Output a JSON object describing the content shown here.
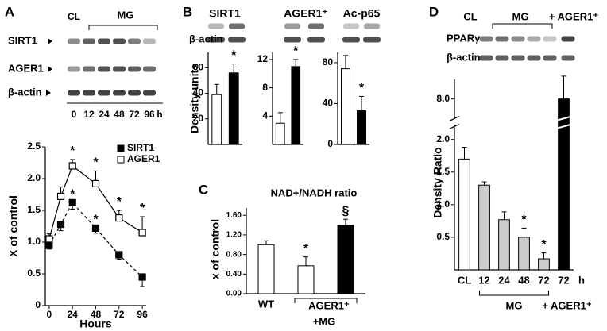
{
  "figure": {
    "panel_labels": [
      "A",
      "B",
      "C",
      "D"
    ]
  },
  "blot_a": {
    "groups": [
      "CL",
      "MG"
    ],
    "rows": [
      "SIRT1",
      "AGER1",
      "β-actin"
    ],
    "times": [
      "0",
      "12",
      "24",
      "48",
      "72",
      "96"
    ],
    "unit": "h"
  },
  "blot_b": {
    "columns": [
      "SIRT1",
      "AGER1⁺",
      "Ac-p65"
    ],
    "rows": [
      "β-actin"
    ]
  },
  "blot_d": {
    "groups": [
      "CL",
      "MG",
      "+ AGER1⁺"
    ],
    "rows": [
      "PPARγ",
      "β-actin"
    ]
  },
  "chart_data": [
    {
      "type": "line",
      "x_label": "Hours",
      "y_label": "X of control",
      "x": [
        0,
        12,
        24,
        48,
        72,
        96
      ],
      "xlim": [
        -4,
        100
      ],
      "xticks": [
        0,
        24,
        48,
        72,
        96
      ],
      "ylim": [
        0,
        2.5
      ],
      "yticks": [
        0,
        0.5,
        {
          "value": 1,
          "label": "1.0"
        },
        1.5,
        {
          "value": 2,
          "label": "2.0"
        },
        2.5
      ],
      "legend": "upper right",
      "series": [
        {
          "name": "SIRT1",
          "color": "#000000",
          "dash": true,
          "values": [
            0.95,
            1.28,
            1.62,
            1.22,
            0.8,
            0.45
          ],
          "errors": [
            0.06,
            0.1,
            0.1,
            0.08,
            0.07,
            0.15
          ],
          "markers": [
            null,
            null,
            "*",
            "*",
            null,
            null
          ]
        },
        {
          "name": "AGER1",
          "color": "#ffffff",
          "dash": false,
          "values": [
            1.05,
            1.72,
            2.2,
            1.92,
            1.38,
            1.15
          ],
          "errors": [
            0.08,
            0.15,
            0.1,
            0.2,
            0.12,
            0.25
          ],
          "markers": [
            null,
            null,
            "*",
            "*",
            "*",
            "*"
          ]
        }
      ]
    },
    {
      "type": "bar",
      "y_label": "Density units",
      "values": [
        39,
        56
      ],
      "errors": [
        8,
        7
      ],
      "colors": [
        "#ffffff",
        "#000000"
      ],
      "markers": [
        null,
        "*"
      ],
      "ylim": [
        0,
        72
      ],
      "yticks": [
        20,
        40,
        60
      ]
    },
    {
      "type": "bar",
      "values": [
        3,
        11
      ],
      "errors": [
        1.5,
        1
      ],
      "colors": [
        "#ffffff",
        "#000000"
      ],
      "markers": [
        null,
        "*"
      ],
      "ylim": [
        0,
        13
      ],
      "yticks": [
        4,
        8,
        12
      ]
    },
    {
      "type": "bar",
      "values": [
        74,
        33
      ],
      "errors": [
        13,
        14
      ],
      "colors": [
        "#ffffff",
        "#000000"
      ],
      "markers": [
        null,
        "*"
      ],
      "ylim": [
        0,
        90
      ],
      "yticks": [
        0,
        40,
        80
      ]
    },
    {
      "type": "bar",
      "title": "NAD+/NADH ratio",
      "y_label": "x of control",
      "categories": [
        "WT",
        null,
        null
      ],
      "group_labels": [
        "AGER1⁺",
        "+MG"
      ],
      "values": [
        1,
        0.57,
        1.4
      ],
      "errors": [
        0.08,
        0.18,
        0.12
      ],
      "colors": [
        "#ffffff",
        "#ffffff",
        "#000000"
      ],
      "markers": [
        null,
        "*",
        "§"
      ],
      "ylim": [
        0,
        1.75
      ],
      "yticks": [
        {
          "value": 0,
          "label": "0.00"
        },
        {
          "value": 0.4,
          "label": "0.40"
        },
        {
          "value": 0.8,
          "label": "0.80"
        },
        {
          "value": 1.2,
          "label": "1.20"
        },
        {
          "value": 1.6,
          "label": "1.60"
        }
      ]
    },
    {
      "type": "bar",
      "y_label": "Density Ratio",
      "categories": [
        "CL",
        "12",
        "24",
        "48",
        "72",
        "72"
      ],
      "x_unit": "h",
      "group_labels": [
        "MG",
        "+ AGER1⁺"
      ],
      "values": [
        1.7,
        1.3,
        0.77,
        0.5,
        0.17,
        8.0
      ],
      "errors": [
        0.18,
        0.05,
        0.12,
        0.14,
        0.09,
        0.35
      ],
      "colors": [
        "#ffffff",
        "#cccccc",
        "#cccccc",
        "#cccccc",
        "#cccccc",
        "#000000"
      ],
      "markers": [
        null,
        null,
        null,
        "*",
        "*",
        null
      ],
      "ylim": [
        0,
        8.3
      ],
      "axis_break": [
        2.2,
        7.7
      ],
      "yticks": [
        0.5,
        {
          "value": 1,
          "label": "1.0"
        },
        1.5,
        {
          "value": 2,
          "label": "2.0"
        },
        {
          "value": 8,
          "label": "8.0"
        }
      ]
    }
  ]
}
